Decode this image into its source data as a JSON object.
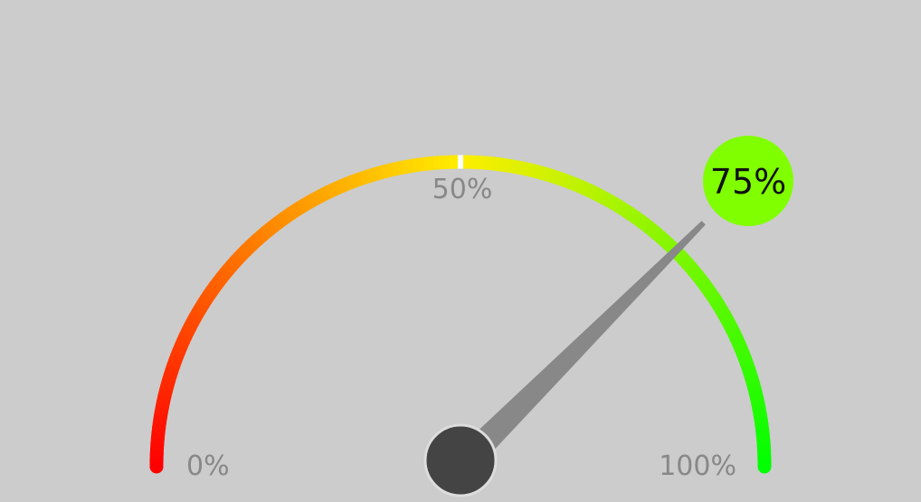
{
  "chart_data": {
    "type": "gauge",
    "value": 75,
    "min": 0,
    "max": 100,
    "value_label": "75%",
    "tick_labels": [
      {
        "value": 0,
        "label": "0%"
      },
      {
        "value": 50,
        "label": "50%"
      },
      {
        "value": 100,
        "label": "100%"
      }
    ],
    "colors": {
      "background": "#cccccc",
      "gradient_start": "#ff0000",
      "gradient_mid": "#ffee00",
      "gradient_end": "#00ff00",
      "midpoint_marker": "#ffffff",
      "needle": "#888888",
      "hub": "#444444",
      "hub_outline": "#dddddd",
      "value_bubble": "#80ff00",
      "value_text": "#111111",
      "tick_text": "#888888"
    }
  }
}
